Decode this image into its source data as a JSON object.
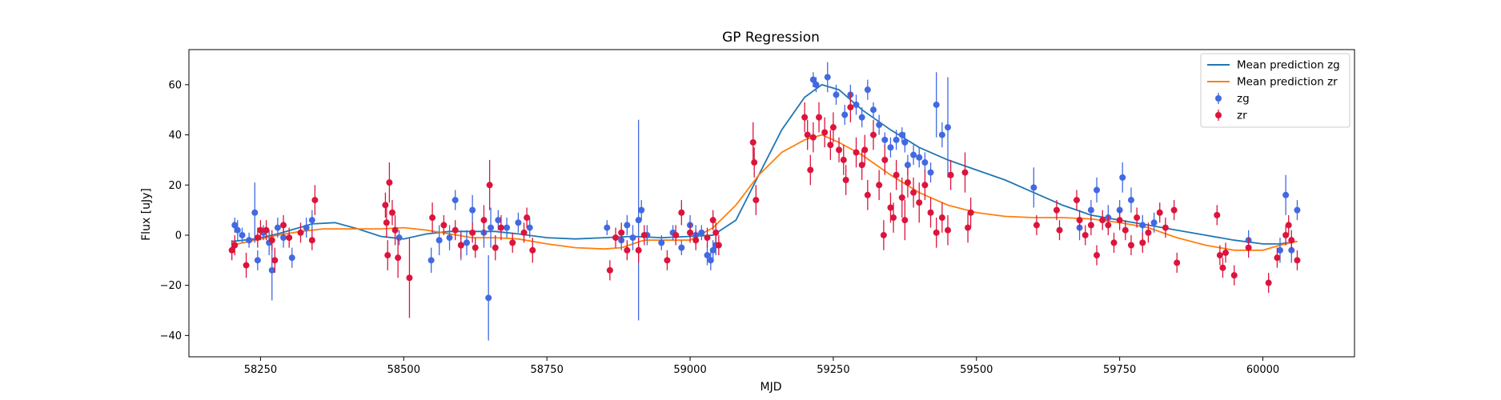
{
  "chart_data": {
    "type": "scatter",
    "title": "GP Regression",
    "xlabel": "MJD",
    "ylabel": "Flux [uJy]",
    "xlim": [
      58125,
      60160
    ],
    "ylim": [
      -48.5,
      74
    ],
    "xticks": [
      58250,
      58500,
      58750,
      59000,
      59250,
      59500,
      59750,
      60000
    ],
    "yticks": [
      -40,
      -20,
      0,
      20,
      40,
      60
    ],
    "grid": false,
    "legend_position": "top-right",
    "colors": {
      "zg_points": "#4169e1",
      "zr_points": "#dc143c",
      "zg_mean": "#1f77b4",
      "zr_mean": "#ff7f0e"
    },
    "series": [
      {
        "name": "Mean prediction zg",
        "kind": "line",
        "x": [
          58200,
          58240,
          58280,
          58310,
          58340,
          58380,
          58420,
          58460,
          58500,
          58540,
          58580,
          58620,
          58660,
          58700,
          58750,
          58800,
          58850,
          58900,
          58950,
          59000,
          59040,
          59080,
          59120,
          59160,
          59200,
          59230,
          59260,
          59300,
          59350,
          59400,
          59450,
          59500,
          59550,
          59600,
          59650,
          59700,
          59750,
          59800,
          59850,
          59900,
          59950,
          60000,
          60030,
          60060
        ],
        "y": [
          -2.5,
          -1.5,
          0.5,
          2.5,
          4.5,
          5,
          2.5,
          -0.5,
          -1.5,
          0.5,
          1.5,
          1.5,
          1.5,
          0.5,
          -1,
          -1.5,
          -1,
          -0.5,
          -1,
          -0.5,
          0,
          6,
          24,
          42,
          55,
          60,
          58,
          50,
          42,
          35,
          30,
          26,
          22,
          17,
          12,
          8,
          6,
          4,
          2,
          0,
          -2,
          -3.5,
          -3.5,
          -2.5
        ]
      },
      {
        "name": "Mean prediction zr",
        "kind": "line",
        "x": [
          58200,
          58240,
          58280,
          58320,
          58360,
          58420,
          58460,
          58500,
          58540,
          58580,
          58620,
          58660,
          58700,
          58750,
          58800,
          58850,
          58880,
          58920,
          58960,
          59000,
          59040,
          59080,
          59120,
          59160,
          59200,
          59230,
          59260,
          59300,
          59350,
          59400,
          59450,
          59500,
          59550,
          59600,
          59650,
          59700,
          59750,
          59800,
          59850,
          59900,
          59950,
          60000,
          60030,
          60060
        ],
        "y": [
          -4,
          -2,
          0,
          1.5,
          2.5,
          2.5,
          2.5,
          3,
          2,
          0.5,
          -1,
          -1,
          -1.5,
          -3.5,
          -5,
          -5.5,
          -5,
          -2,
          -2,
          -2,
          3,
          12,
          24,
          33,
          38,
          40,
          37,
          32,
          24,
          17,
          12,
          9,
          7.5,
          7,
          7,
          6.5,
          5,
          3,
          -1,
          -4,
          -6,
          -6,
          -4,
          -2.5
        ]
      },
      {
        "name": "zg",
        "kind": "errorbar",
        "points": [
          [
            58205,
            4,
            3
          ],
          [
            58210,
            2,
            4
          ],
          [
            58218,
            0,
            3
          ],
          [
            58230,
            -2,
            3
          ],
          [
            58240,
            9,
            12
          ],
          [
            58245,
            -10,
            4
          ],
          [
            58255,
            1,
            3
          ],
          [
            58265,
            -3,
            5
          ],
          [
            58270,
            -14,
            12
          ],
          [
            58280,
            3,
            4
          ],
          [
            58290,
            -1,
            4
          ],
          [
            58305,
            -9,
            4
          ],
          [
            58330,
            3,
            4
          ],
          [
            58340,
            6,
            4
          ],
          [
            58492,
            -1,
            3
          ],
          [
            58548,
            -10,
            5
          ],
          [
            58562,
            -2,
            6
          ],
          [
            58580,
            -1,
            5
          ],
          [
            58590,
            14,
            4
          ],
          [
            58600,
            -4,
            6
          ],
          [
            58610,
            -3,
            5
          ],
          [
            58620,
            10,
            6
          ],
          [
            58640,
            1,
            6
          ],
          [
            58648,
            -25,
            17
          ],
          [
            58652,
            3,
            8
          ],
          [
            58665,
            6,
            4
          ],
          [
            58680,
            3,
            4
          ],
          [
            58700,
            5,
            4
          ],
          [
            58720,
            3,
            4
          ],
          [
            58855,
            3,
            3
          ],
          [
            58880,
            -2,
            4
          ],
          [
            58890,
            4,
            4
          ],
          [
            58900,
            -1,
            5
          ],
          [
            58910,
            6,
            40
          ],
          [
            58915,
            10,
            4
          ],
          [
            58925,
            0,
            4
          ],
          [
            58950,
            -3,
            3
          ],
          [
            58970,
            1,
            3
          ],
          [
            58985,
            -5,
            3
          ],
          [
            59000,
            4,
            4
          ],
          [
            59010,
            0,
            4
          ],
          [
            59020,
            1,
            3
          ],
          [
            59030,
            -8,
            4
          ],
          [
            59036,
            -10,
            4
          ],
          [
            59040,
            -6,
            4
          ],
          [
            59045,
            -4,
            4
          ],
          [
            59215,
            62,
            3
          ],
          [
            59220,
            60,
            3
          ],
          [
            59240,
            63,
            6
          ],
          [
            59255,
            56,
            4
          ],
          [
            59270,
            48,
            4
          ],
          [
            59280,
            56,
            4
          ],
          [
            59290,
            52,
            4
          ],
          [
            59300,
            47,
            4
          ],
          [
            59310,
            58,
            4
          ],
          [
            59320,
            50,
            3
          ],
          [
            59330,
            44,
            4
          ],
          [
            59340,
            38,
            3
          ],
          [
            59350,
            35,
            4
          ],
          [
            59360,
            38,
            4
          ],
          [
            59370,
            40,
            3
          ],
          [
            59375,
            37,
            4
          ],
          [
            59380,
            28,
            4
          ],
          [
            59390,
            32,
            4
          ],
          [
            59400,
            31,
            4
          ],
          [
            59410,
            29,
            4
          ],
          [
            59420,
            25,
            4
          ],
          [
            59430,
            52,
            13
          ],
          [
            59440,
            40,
            5
          ],
          [
            59450,
            43,
            20
          ],
          [
            59600,
            19,
            8
          ],
          [
            59680,
            3,
            5
          ],
          [
            59700,
            10,
            4
          ],
          [
            59710,
            18,
            5
          ],
          [
            59730,
            7,
            5
          ],
          [
            59750,
            10,
            4
          ],
          [
            59755,
            23,
            6
          ],
          [
            59770,
            14,
            5
          ],
          [
            59790,
            4,
            4
          ],
          [
            59810,
            5,
            4
          ],
          [
            59975,
            -2,
            4
          ],
          [
            60030,
            -6,
            5
          ],
          [
            60040,
            16,
            8
          ],
          [
            60050,
            -6,
            5
          ],
          [
            60060,
            10,
            4
          ]
        ]
      },
      {
        "name": "zr",
        "kind": "errorbar",
        "points": [
          [
            58200,
            -6,
            4
          ],
          [
            58205,
            -4,
            4
          ],
          [
            58225,
            -12,
            5
          ],
          [
            58245,
            -1,
            4
          ],
          [
            58250,
            2,
            4
          ],
          [
            58260,
            2,
            4
          ],
          [
            58270,
            -2,
            4
          ],
          [
            58275,
            -10,
            5
          ],
          [
            58290,
            4,
            4
          ],
          [
            58300,
            -1,
            4
          ],
          [
            58320,
            1,
            4
          ],
          [
            58340,
            -2,
            4
          ],
          [
            58345,
            14,
            6
          ],
          [
            58468,
            12,
            5
          ],
          [
            58470,
            5,
            6
          ],
          [
            58472,
            -8,
            6
          ],
          [
            58475,
            21,
            8
          ],
          [
            58480,
            9,
            5
          ],
          [
            58485,
            2,
            6
          ],
          [
            58490,
            -9,
            8
          ],
          [
            58510,
            -17,
            16
          ],
          [
            58550,
            7,
            6
          ],
          [
            58570,
            4,
            4
          ],
          [
            58590,
            2,
            4
          ],
          [
            58600,
            -4,
            5
          ],
          [
            58620,
            1,
            4
          ],
          [
            58625,
            -5,
            4
          ],
          [
            58640,
            6,
            6
          ],
          [
            58650,
            20,
            10
          ],
          [
            58660,
            -5,
            5
          ],
          [
            58670,
            3,
            5
          ],
          [
            58690,
            -3,
            4
          ],
          [
            58710,
            1,
            4
          ],
          [
            58715,
            7,
            4
          ],
          [
            58725,
            -6,
            5
          ],
          [
            58860,
            -14,
            4
          ],
          [
            58870,
            -1,
            4
          ],
          [
            58880,
            1,
            4
          ],
          [
            58890,
            -6,
            4
          ],
          [
            58910,
            -6,
            5
          ],
          [
            58920,
            0,
            4
          ],
          [
            58960,
            -10,
            4
          ],
          [
            58975,
            0,
            4
          ],
          [
            58985,
            9,
            5
          ],
          [
            59000,
            1,
            4
          ],
          [
            59010,
            -2,
            4
          ],
          [
            59030,
            -1,
            4
          ],
          [
            59040,
            6,
            4
          ],
          [
            59045,
            1,
            4
          ],
          [
            59050,
            -4,
            4
          ],
          [
            59110,
            37,
            8
          ],
          [
            59112,
            29,
            6
          ],
          [
            59115,
            14,
            6
          ],
          [
            59200,
            47,
            6
          ],
          [
            59205,
            40,
            6
          ],
          [
            59210,
            26,
            6
          ],
          [
            59215,
            39,
            6
          ],
          [
            59225,
            47,
            6
          ],
          [
            59235,
            41,
            6
          ],
          [
            59245,
            36,
            6
          ],
          [
            59250,
            43,
            6
          ],
          [
            59260,
            34,
            5
          ],
          [
            59268,
            30,
            6
          ],
          [
            59272,
            22,
            6
          ],
          [
            59280,
            51,
            6
          ],
          [
            59290,
            33,
            6
          ],
          [
            59300,
            28,
            6
          ],
          [
            59305,
            34,
            6
          ],
          [
            59310,
            16,
            6
          ],
          [
            59320,
            40,
            6
          ],
          [
            59330,
            20,
            6
          ],
          [
            59338,
            0,
            6
          ],
          [
            59340,
            30,
            6
          ],
          [
            59350,
            11,
            6
          ],
          [
            59355,
            7,
            6
          ],
          [
            59360,
            24,
            6
          ],
          [
            59370,
            15,
            8
          ],
          [
            59375,
            6,
            8
          ],
          [
            59380,
            21,
            6
          ],
          [
            59390,
            17,
            6
          ],
          [
            59400,
            13,
            8
          ],
          [
            59410,
            20,
            6
          ],
          [
            59420,
            9,
            6
          ],
          [
            59430,
            1,
            6
          ],
          [
            59440,
            7,
            6
          ],
          [
            59450,
            2,
            6
          ],
          [
            59455,
            24,
            6
          ],
          [
            59480,
            25,
            8
          ],
          [
            59485,
            3,
            6
          ],
          [
            59490,
            9,
            6
          ],
          [
            59605,
            4,
            4
          ],
          [
            59640,
            10,
            4
          ],
          [
            59645,
            2,
            4
          ],
          [
            59675,
            14,
            4
          ],
          [
            59680,
            6,
            4
          ],
          [
            59690,
            0,
            4
          ],
          [
            59700,
            4,
            4
          ],
          [
            59710,
            -8,
            4
          ],
          [
            59720,
            6,
            4
          ],
          [
            59730,
            4,
            4
          ],
          [
            59740,
            -3,
            4
          ],
          [
            59750,
            6,
            4
          ],
          [
            59760,
            2,
            4
          ],
          [
            59770,
            -4,
            4
          ],
          [
            59780,
            7,
            4
          ],
          [
            59790,
            -3,
            4
          ],
          [
            59800,
            1,
            4
          ],
          [
            59820,
            9,
            4
          ],
          [
            59830,
            3,
            4
          ],
          [
            59845,
            10,
            4
          ],
          [
            59850,
            -11,
            4
          ],
          [
            59920,
            8,
            4
          ],
          [
            59925,
            -8,
            4
          ],
          [
            59930,
            -13,
            4
          ],
          [
            59935,
            -7,
            4
          ],
          [
            59950,
            -16,
            4
          ],
          [
            59975,
            -5,
            4
          ],
          [
            60010,
            -19,
            4
          ],
          [
            60025,
            -9,
            4
          ],
          [
            60040,
            0,
            4
          ],
          [
            60045,
            4,
            4
          ],
          [
            60050,
            -2,
            4
          ],
          [
            60060,
            -10,
            4
          ]
        ]
      }
    ],
    "legend": [
      {
        "label": "Mean prediction zg",
        "kind": "line",
        "color": "#1f77b4"
      },
      {
        "label": "Mean prediction zr",
        "kind": "line",
        "color": "#ff7f0e"
      },
      {
        "label": "zg",
        "kind": "errorbar",
        "color": "#4169e1"
      },
      {
        "label": "zr",
        "kind": "errorbar",
        "color": "#dc143c"
      }
    ]
  }
}
